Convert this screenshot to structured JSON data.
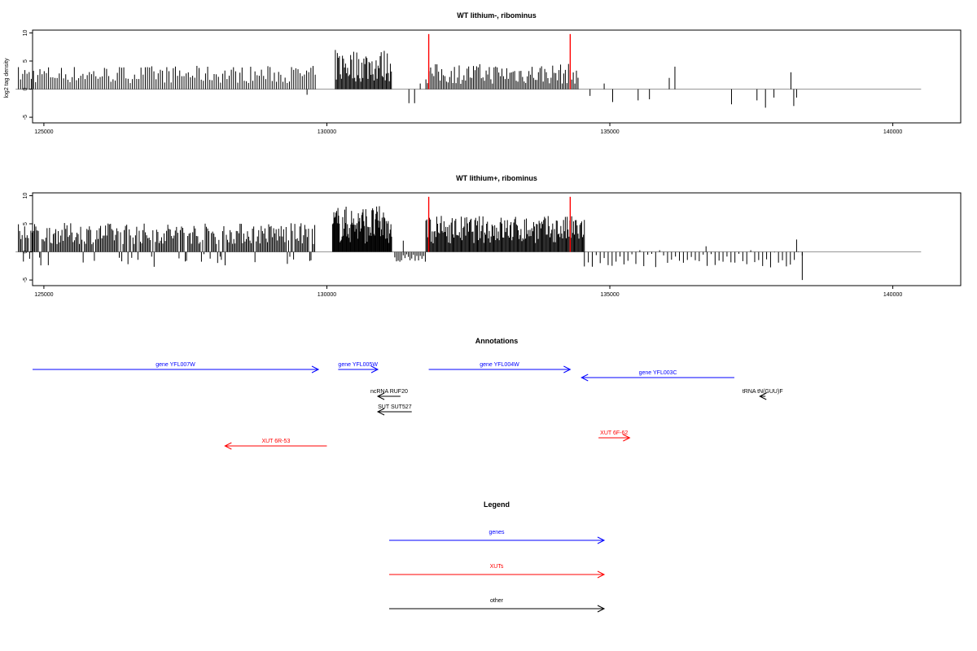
{
  "panels": [
    {
      "title": "WT lithium-, ribominus",
      "ylabel": "log2 tag density",
      "xlim": [
        124800,
        141200
      ],
      "ylim": [
        -6,
        10.5
      ],
      "xticks": [
        125000,
        130000,
        135000,
        140000
      ],
      "yticks": [
        -5,
        0,
        5,
        10
      ],
      "baseline_range": [
        124500,
        140500
      ],
      "bar_color": "#000000",
      "highlight_color": "#ff0000",
      "highlight_bars": [
        {
          "x": 131800,
          "value": 9.8
        },
        {
          "x": 134300,
          "value": 9.8
        }
      ],
      "segments": [
        {
          "from": 124550,
          "to": 129800,
          "step": 38,
          "base": 2.0,
          "amp": 2.2,
          "neg": 0.0,
          "negAmp": 0
        },
        {
          "from": 130150,
          "to": 131150,
          "step": 18,
          "base": 3.0,
          "amp": 4.2,
          "neg": 0.0,
          "negAmp": 0
        },
        {
          "from": 131750,
          "to": 134450,
          "step": 28,
          "base": 2.0,
          "amp": 2.6,
          "neg": 0.0,
          "negAmp": 0
        }
      ],
      "sparse_bars": [
        {
          "x": 129650,
          "value": -1.0
        },
        {
          "x": 131450,
          "value": -2.5
        },
        {
          "x": 131550,
          "value": -2.5
        },
        {
          "x": 131650,
          "value": 1.0
        },
        {
          "x": 134650,
          "value": -1.2
        },
        {
          "x": 134900,
          "value": 1.0
        },
        {
          "x": 135050,
          "value": -2.3
        },
        {
          "x": 135500,
          "value": -2.0
        },
        {
          "x": 135700,
          "value": -1.8
        },
        {
          "x": 136050,
          "value": 2.0
        },
        {
          "x": 136150,
          "value": 4.0
        },
        {
          "x": 137150,
          "value": -2.7
        },
        {
          "x": 137600,
          "value": -2.0
        },
        {
          "x": 137750,
          "value": -3.3
        },
        {
          "x": 137900,
          "value": -1.5
        },
        {
          "x": 138200,
          "value": 3.0
        },
        {
          "x": 138250,
          "value": -3.0
        },
        {
          "x": 138300,
          "value": -1.5
        }
      ]
    },
    {
      "title": "WT lithium+, ribominus",
      "ylabel": "",
      "xlim": [
        124800,
        141200
      ],
      "ylim": [
        -6,
        10.5
      ],
      "xticks": [
        125000,
        130000,
        135000,
        140000
      ],
      "yticks": [
        -5,
        0,
        5,
        10
      ],
      "baseline_range": [
        124500,
        140500
      ],
      "bar_color": "#000000",
      "highlight_color": "#ff0000",
      "highlight_bars": [
        {
          "x": 131800,
          "value": 9.8
        },
        {
          "x": 134300,
          "value": 9.8
        }
      ],
      "segments": [
        {
          "from": 124550,
          "to": 129800,
          "step": 22,
          "base": 2.5,
          "amp": 2.7,
          "neg": 0.08,
          "negAmp": 2.5
        },
        {
          "from": 130100,
          "to": 131150,
          "step": 12,
          "base": 3.5,
          "amp": 4.8,
          "neg": 0.0,
          "negAmp": 0
        },
        {
          "from": 131200,
          "to": 131750,
          "step": 30,
          "base": -1.5,
          "amp": 1.5,
          "neg": 1.0,
          "negAmp": 1.5
        },
        {
          "from": 131750,
          "to": 134550,
          "step": 16,
          "base": 3.0,
          "amp": 3.5,
          "neg": 0.0,
          "negAmp": 0
        },
        {
          "from": 134550,
          "to": 138450,
          "step": 70,
          "base": -1.5,
          "amp": 2.0,
          "neg": 0.85,
          "negAmp": 2.5
        }
      ],
      "sparse_bars": [
        {
          "x": 130600,
          "value": 1.8
        },
        {
          "x": 131350,
          "value": 2.0
        },
        {
          "x": 136700,
          "value": 1.0
        },
        {
          "x": 138300,
          "value": 2.2
        },
        {
          "x": 138400,
          "value": -5.0
        }
      ]
    }
  ],
  "annotations": {
    "title": "Annotations",
    "coord_range": [
      124800,
      141200
    ],
    "features": [
      {
        "label": "gene YFL007W",
        "from": 124800,
        "to": 129850,
        "dir": "right",
        "row": 0,
        "color": "#0000ff"
      },
      {
        "label": "gene YFL005W",
        "from": 130200,
        "to": 130900,
        "dir": "right",
        "row": 0,
        "color": "#0000ff"
      },
      {
        "label": "gene YFL004W",
        "from": 131800,
        "to": 134300,
        "dir": "right",
        "row": 0,
        "color": "#0000ff"
      },
      {
        "label": "gene YFL003C",
        "from": 134500,
        "to": 137200,
        "dir": "left",
        "row": 1,
        "color": "#0000ff"
      },
      {
        "label": "ncRNA RUF20",
        "from": 130900,
        "to": 131300,
        "dir": "left",
        "row": 2,
        "color": "#000000"
      },
      {
        "label": "tRNA tN(GUU)F",
        "from": 137650,
        "to": 137750,
        "dir": "left",
        "row": 2,
        "color": "#000000"
      },
      {
        "label": "SUT SUT527",
        "from": 130900,
        "to": 131500,
        "dir": "left",
        "row": 3,
        "color": "#000000"
      },
      {
        "label": "XUT 6R-53",
        "from": 128200,
        "to": 130000,
        "dir": "left",
        "row": 5,
        "color": "#ff0000"
      },
      {
        "label": "XUT 6F-62",
        "from": 134800,
        "to": 135350,
        "dir": "right",
        "row": 4,
        "color": "#ff0000"
      }
    ]
  },
  "legend": {
    "title": "Legend",
    "items": [
      {
        "label": "genes",
        "color": "#0000ff"
      },
      {
        "label": "XUTs",
        "color": "#ff0000"
      },
      {
        "label": "other",
        "color": "#000000"
      }
    ]
  }
}
